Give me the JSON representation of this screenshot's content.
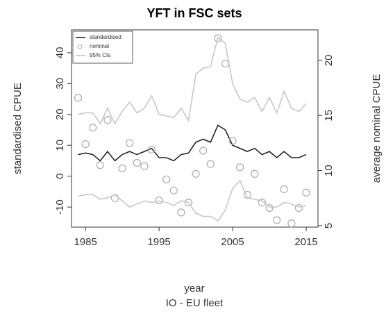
{
  "chart_data": {
    "type": "line",
    "title": "YFT in FSC sets",
    "subtitle": "IO - EU fleet",
    "xlabel": "year",
    "ylabel": "standardised CPUE",
    "y2label": "average nominal CPUE",
    "x": [
      1984,
      1985,
      1986,
      1987,
      1988,
      1989,
      1990,
      1991,
      1992,
      1993,
      1994,
      1995,
      1996,
      1997,
      1998,
      1999,
      2000,
      2001,
      2002,
      2003,
      2004,
      2005,
      2006,
      2007,
      2008,
      2009,
      2010,
      2011,
      2012,
      2013,
      2014,
      2015
    ],
    "xlim": [
      1983.1,
      2016.6
    ],
    "xticks": [
      1985,
      1995,
      2005,
      2015
    ],
    "ylim": [
      -16.5,
      47.4
    ],
    "yticks": [
      -10,
      0,
      10,
      20,
      30,
      40
    ],
    "y2lim": [
      4.87,
      22.77
    ],
    "y2ticks": [
      5,
      10,
      15,
      20
    ],
    "legend": "top-left",
    "series": [
      {
        "name": "standardised",
        "type": "line",
        "color": "#222222",
        "values": [
          7,
          7.5,
          7,
          5,
          8,
          5,
          7,
          8,
          7,
          8,
          9,
          6,
          6,
          5,
          7,
          7.5,
          11,
          12,
          11,
          16.5,
          15,
          10,
          9,
          8,
          9,
          7,
          8,
          6,
          8,
          6,
          6,
          7
        ]
      },
      {
        "name": "nominal",
        "type": "scatter",
        "color": "#aaaaaa",
        "axis": "y2",
        "values": [
          16.6,
          12.4,
          13.9,
          10.5,
          14.6,
          7.5,
          10.2,
          12.5,
          10.7,
          10.4,
          11.9,
          7.3,
          9.2,
          8.2,
          6.2,
          7.1,
          9.7,
          11.8,
          10.6,
          22.0,
          19.7,
          12.7,
          10.3,
          7.8,
          9.7,
          7.1,
          6.6,
          5.5,
          8.3,
          5.2,
          6.6,
          8.0
        ]
      },
      {
        "name": "95% CIs",
        "type": "band",
        "color": "#c4c4c4",
        "upper": [
          20,
          20.5,
          20.5,
          17,
          22,
          17,
          21,
          24,
          20.5,
          22,
          26,
          20,
          19.5,
          19,
          22,
          18,
          33,
          35,
          35.5,
          45,
          43,
          30,
          25,
          24,
          25.5,
          21,
          25.5,
          20.5,
          27.5,
          22,
          21,
          23.5
        ],
        "lower": [
          -6.5,
          -6,
          -6,
          -7.5,
          -7,
          -6,
          -8,
          -10,
          -9,
          -8,
          -8.5,
          -8,
          -8.5,
          -9.5,
          -8,
          -8.5,
          -12,
          -13,
          -13,
          -14.5,
          -11,
          -4,
          -1.5,
          -7,
          -7.5,
          -8,
          -10,
          -10,
          -8.5,
          -9,
          -10,
          -9.5
        ]
      }
    ]
  }
}
